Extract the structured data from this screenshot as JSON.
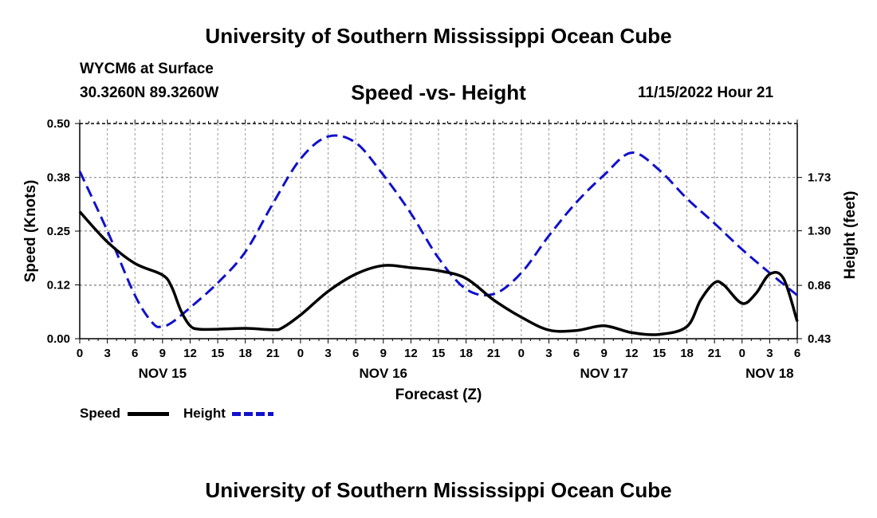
{
  "page": {
    "title": "University of Southern Mississippi Ocean Cube",
    "footer_title": "University of Southern Mississippi Ocean Cube",
    "station": "WYCM6 at Surface",
    "coords": "30.3260N  89.3260W",
    "subtitle": "Speed -vs- Height",
    "datetime": "11/15/2022 Hour 21"
  },
  "colors": {
    "speed": "#000000",
    "height": "#1010cc",
    "grid": "#999999"
  },
  "chart_data": {
    "type": "line",
    "title": "Speed -vs- Height",
    "xlabel": "Forecast (Z)",
    "ylabel_left": "Speed (Knots)",
    "ylabel_right": "Height (feet)",
    "x_range": [
      0,
      78
    ],
    "x_tick_labels": [
      "0",
      "3",
      "6",
      "9",
      "12",
      "15",
      "18",
      "21",
      "0",
      "3",
      "6",
      "9",
      "12",
      "15",
      "18",
      "21",
      "0",
      "3",
      "6",
      "9",
      "12",
      "15",
      "18",
      "21",
      "0",
      "3",
      "6"
    ],
    "dates": [
      {
        "label": "NOV 15",
        "x": 9
      },
      {
        "label": "NOV 16",
        "x": 33
      },
      {
        "label": "NOV 17",
        "x": 57
      },
      {
        "label": "NOV 18",
        "x": 75
      }
    ],
    "y_left": {
      "min": 0,
      "max": 0.5,
      "ticks": [
        0,
        0.125,
        0.25,
        0.375,
        0.5
      ],
      "tick_labels": [
        "0.00",
        "0.12",
        "0.25",
        "0.38",
        "0.50"
      ]
    },
    "y_right": {
      "min": 0.43,
      "max": 2.165,
      "ticks": [
        0.43,
        0.86,
        1.3,
        1.73
      ],
      "tick_labels": [
        "0.43",
        "0.86",
        "1.30",
        "1.73"
      ]
    },
    "legend": [
      {
        "name": "Speed"
      },
      {
        "name": "Height"
      }
    ],
    "series": [
      {
        "name": "Speed",
        "axis": "left",
        "style": "solid",
        "x": [
          0,
          3,
          6,
          9,
          10,
          11,
          12,
          13,
          15,
          18,
          21,
          22,
          24,
          27,
          30,
          33,
          36,
          39,
          42,
          45,
          48,
          51,
          54,
          57,
          60,
          63,
          66,
          67.5,
          69,
          70,
          72,
          73.5,
          75,
          76.5,
          78
        ],
        "values": [
          0.295,
          0.225,
          0.175,
          0.148,
          0.12,
          0.065,
          0.03,
          0.022,
          0.022,
          0.024,
          0.021,
          0.025,
          0.055,
          0.11,
          0.15,
          0.17,
          0.165,
          0.158,
          0.14,
          0.09,
          0.05,
          0.02,
          0.019,
          0.03,
          0.014,
          0.01,
          0.028,
          0.09,
          0.13,
          0.125,
          0.082,
          0.105,
          0.15,
          0.14,
          0.04
        ]
      },
      {
        "name": "Height",
        "axis": "right",
        "style": "dashed",
        "x": [
          0,
          3,
          6,
          8,
          9,
          10,
          12,
          15,
          18,
          21,
          24,
          27,
          30,
          33,
          36,
          39,
          42,
          45,
          48,
          51,
          54,
          57,
          60,
          63,
          66,
          69,
          72,
          75,
          78
        ],
        "values": [
          1.78,
          1.3,
          0.78,
          0.55,
          0.53,
          0.56,
          0.68,
          0.88,
          1.13,
          1.52,
          1.88,
          2.06,
          2.01,
          1.75,
          1.44,
          1.08,
          0.83,
          0.79,
          0.96,
          1.26,
          1.53,
          1.75,
          1.93,
          1.79,
          1.56,
          1.36,
          1.15,
          0.96,
          0.78
        ]
      }
    ]
  }
}
